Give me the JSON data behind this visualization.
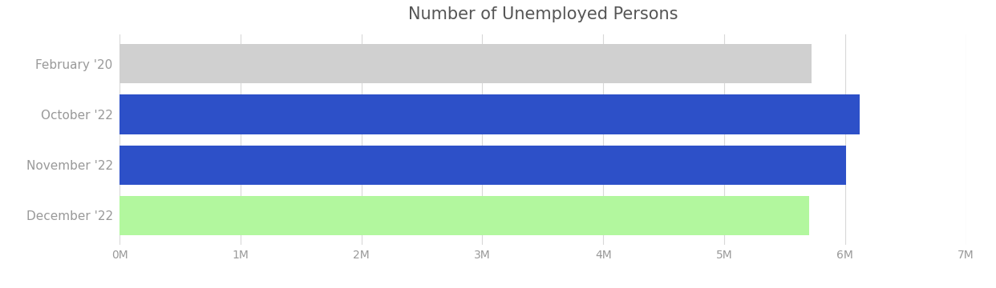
{
  "title": "Number of Unemployed Persons",
  "categories": [
    "December '22",
    "November '22",
    "October '22",
    "February '20"
  ],
  "values": [
    5700000,
    6010000,
    6120000,
    5720000
  ],
  "bar_colors": [
    "#b2f79e",
    "#2d50c8",
    "#2d50c8",
    "#d0d0d0"
  ],
  "xlim": [
    0,
    7000000
  ],
  "xtick_values": [
    0,
    1000000,
    2000000,
    3000000,
    4000000,
    5000000,
    6000000,
    7000000
  ],
  "xtick_labels": [
    "0M",
    "1M",
    "2M",
    "3M",
    "4M",
    "5M",
    "6M",
    "7M"
  ],
  "title_fontsize": 15,
  "tick_fontsize": 10,
  "label_fontsize": 11,
  "bar_height": 0.78,
  "background_color": "#ffffff",
  "grid_color": "#d8d8d8",
  "label_color": "#999999",
  "title_color": "#555555"
}
